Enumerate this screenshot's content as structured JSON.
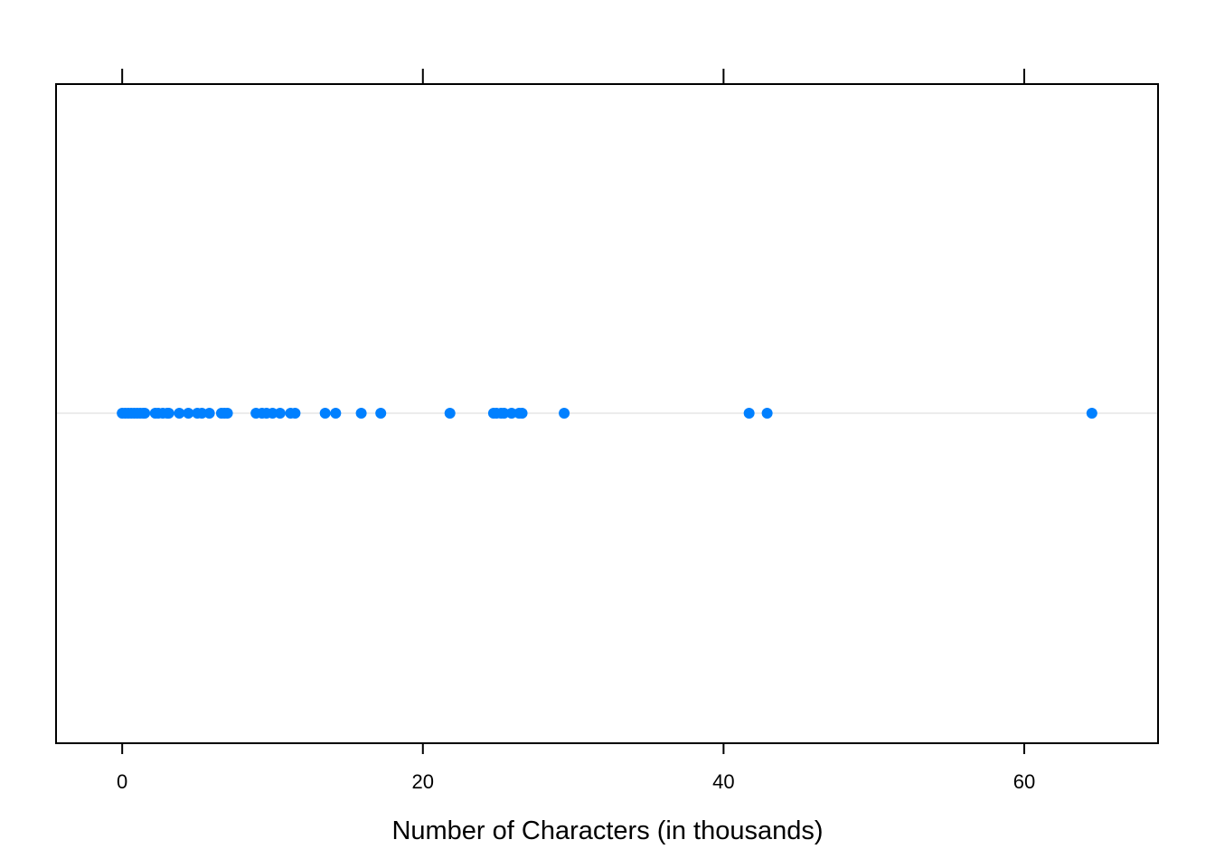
{
  "chart_data": {
    "type": "scatter",
    "title": "",
    "xlabel": "Number of Characters (in thousands)",
    "ylabel": "",
    "xlim": [
      -4.4,
      68.9
    ],
    "xticks": [
      0,
      20,
      40,
      60
    ],
    "xtick_labels": [
      "0",
      "20",
      "40",
      "60"
    ],
    "grid": false,
    "reference_line": true,
    "point_color": "#0080ff",
    "reference_line_color": "#e6e6e6",
    "values": [
      0.0,
      0.2,
      0.4,
      0.6,
      0.8,
      1.0,
      1.2,
      1.4,
      1.5,
      2.2,
      2.4,
      2.7,
      3.0,
      3.1,
      3.8,
      4.4,
      5.0,
      5.3,
      5.8,
      6.6,
      6.8,
      7.0,
      8.9,
      9.3,
      9.6,
      10.0,
      10.5,
      11.2,
      11.5,
      13.5,
      14.2,
      15.9,
      17.2,
      21.8,
      24.7,
      24.9,
      25.2,
      25.4,
      25.9,
      26.4,
      26.6,
      29.4,
      41.7,
      42.9,
      64.5
    ]
  }
}
